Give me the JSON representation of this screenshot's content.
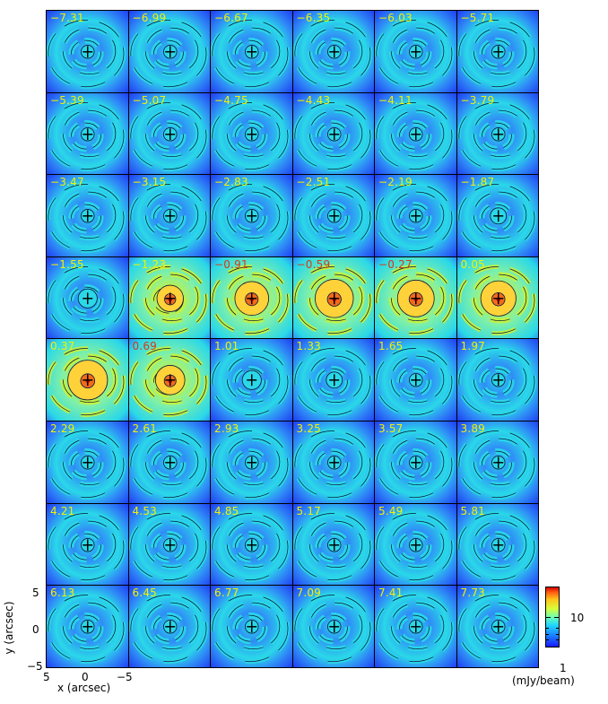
{
  "panels": {
    "velocities": [
      "−7.31",
      "−6.99",
      "−6.67",
      "−6.35",
      "−6.03",
      "−5.71",
      "−5.39",
      "−5.07",
      "−4.75",
      "−4.43",
      "−4.11",
      "−3.79",
      "−3.47",
      "−3.15",
      "−2.83",
      "−2.51",
      "−2.19",
      "−1.87",
      "−1.55",
      "−1.23",
      "−0.91",
      "−0.59",
      "−0.27",
      "0.05",
      "0.37",
      "0.69",
      "1.01",
      "1.33",
      "1.65",
      "1.97",
      "2.29",
      "2.61",
      "2.93",
      "3.25",
      "3.57",
      "3.89",
      "4.21",
      "4.53",
      "4.85",
      "5.17",
      "5.49",
      "5.81",
      "6.13",
      "6.45",
      "6.77",
      "7.09",
      "7.41",
      "7.73"
    ],
    "red_label_indices": [
      20,
      21,
      22,
      25
    ],
    "brightness": [
      0,
      0,
      0,
      0,
      0,
      0,
      0,
      0,
      0,
      0,
      0,
      0,
      0,
      0,
      0,
      0,
      0,
      0.1,
      0.2,
      0.45,
      0.7,
      0.85,
      0.8,
      0.75,
      0.9,
      0.55,
      0.2,
      0.1,
      0,
      0,
      0,
      0,
      0,
      0,
      0,
      0,
      0,
      0,
      0,
      0,
      0,
      0,
      0,
      0,
      0,
      0,
      0,
      0
    ]
  },
  "axes": {
    "ylabel": "y (arcsec)",
    "xlabel": "x (arcsec)",
    "y_ticks": [
      "5",
      "0",
      "−5"
    ],
    "x_ticks": [
      "5",
      "0",
      "−5"
    ]
  },
  "colorbar": {
    "tick_label": "10",
    "min_label": "1",
    "unit": "(mJy/beam)"
  },
  "colors": {
    "bg_dark": "#1f3ef2",
    "bg_mid": "#2f8cf6",
    "ring": "#2ad8e8",
    "bright": "#c8f23a",
    "hot": "#f26a1a",
    "contour": "#0a1a3a",
    "label_yellow": "#f2f200",
    "label_red": "#d43a1c"
  }
}
